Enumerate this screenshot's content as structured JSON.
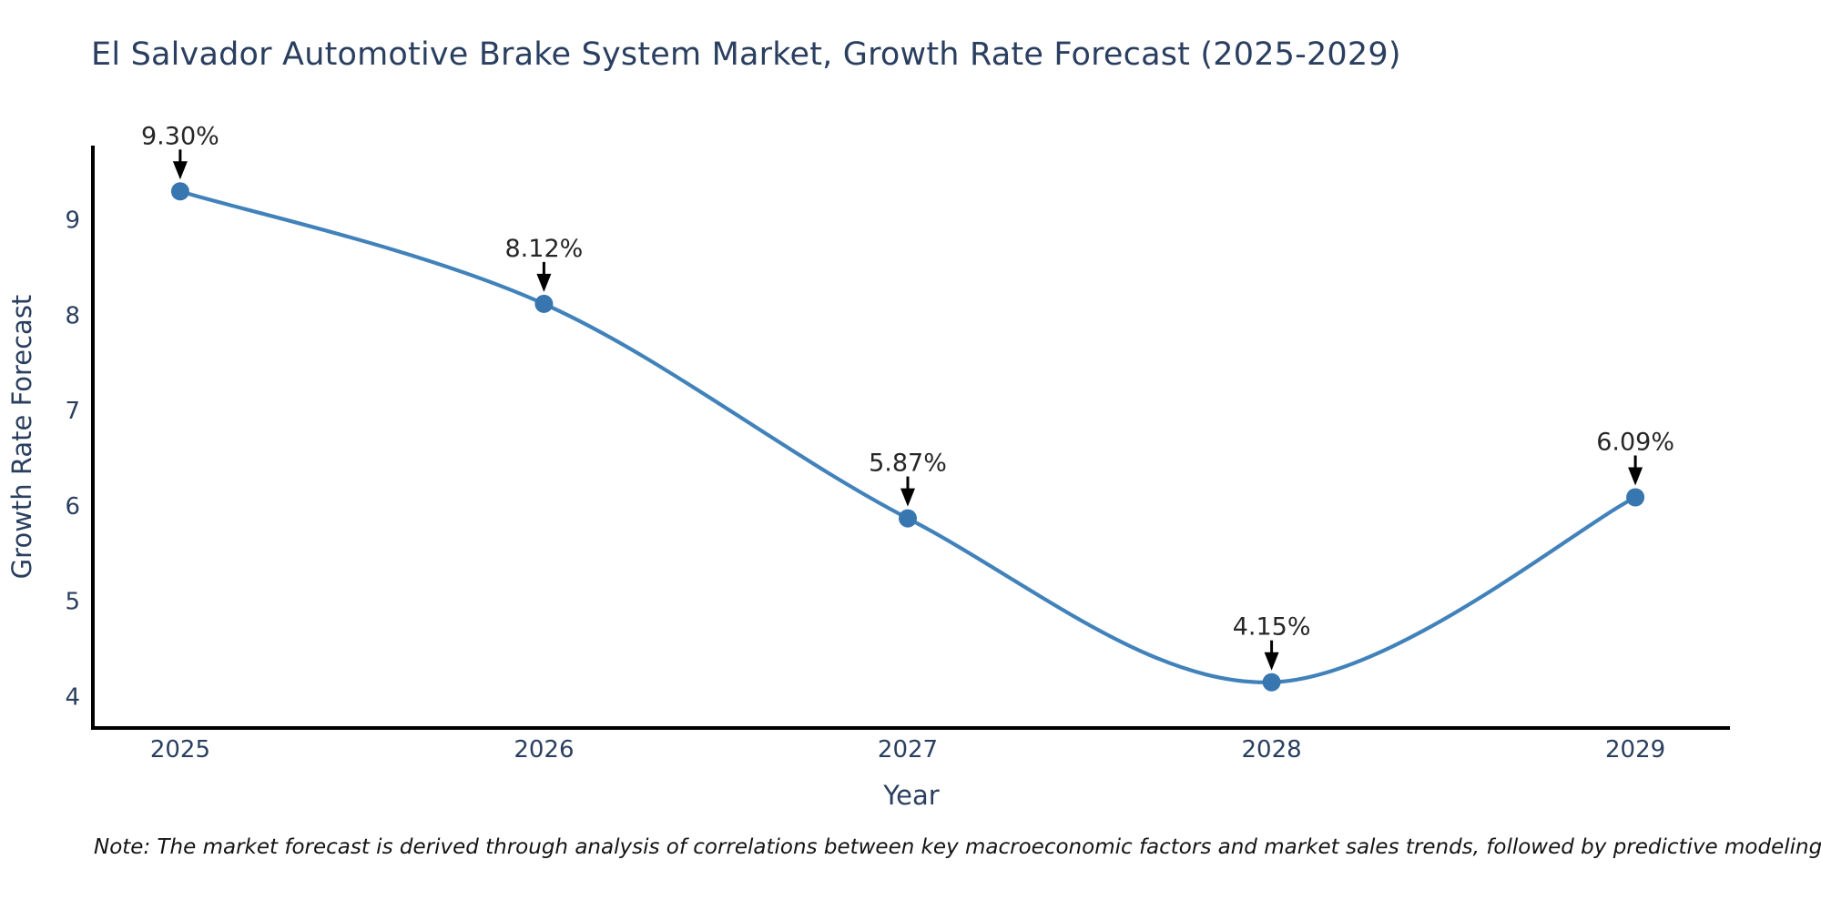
{
  "page": {
    "title": "El Salvador Automotive Brake System Market, Growth Rate Forecast (2025-2029)",
    "note": "Note: The market forecast is derived through analysis of correlations between key macroeconomic factors and market sales trends, followed by predictive modeling to project future sales."
  },
  "chart_data": {
    "type": "line",
    "title": "El Salvador Automotive Brake System Market, Growth Rate Forecast (2025-2029)",
    "xlabel": "Year",
    "ylabel": "Growth Rate Forecast",
    "x": [
      2025,
      2026,
      2027,
      2028,
      2029
    ],
    "values": [
      9.3,
      8.12,
      5.87,
      4.15,
      6.09
    ],
    "point_labels": [
      "9.30%",
      "8.12%",
      "5.87%",
      "4.15%",
      "6.09%"
    ],
    "yticks": [
      4,
      5,
      6,
      7,
      8,
      9
    ],
    "xlim": [
      2024.76,
      2029.26
    ],
    "ylim": [
      3.67,
      9.78
    ],
    "grid": false,
    "legend": "none",
    "line_shape": "spline",
    "marker": "circle",
    "annotation_arrows": true,
    "colors": {
      "line": "#4182bb",
      "marker": "#3876b0",
      "axis": "#000000",
      "tick_text": "#2a3f5f",
      "axis_title_text": "#2a3f5f",
      "annotation_text": "#262626",
      "arrow": "#000000",
      "title_text": "#2a3f5f",
      "background": "#ffffff"
    }
  }
}
